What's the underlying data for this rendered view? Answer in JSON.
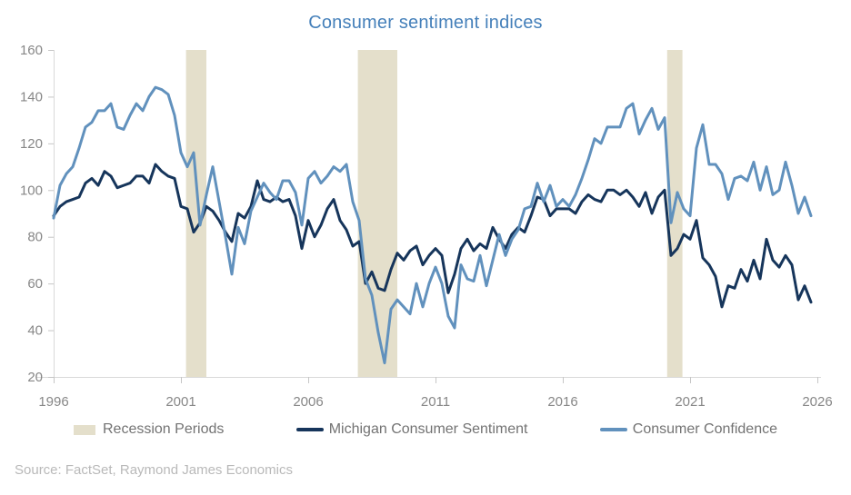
{
  "title": "Consumer sentiment indices",
  "source": "Source: FactSet, Raymond James Economics",
  "colors": {
    "title": "#4580ba",
    "michigan": "#16355b",
    "confidence": "#6191bd",
    "recession": "#e4dfcb",
    "axis_text": "#878787",
    "axis_line": "#d9d9d9",
    "tick_mark": "#c6c6c6",
    "legend_text": "#737373",
    "source_text": "#b9b9b9"
  },
  "legend": [
    {
      "label": "Recession Periods",
      "swatch": "band-swatch-icon"
    },
    {
      "label": "Michigan Consumer Sentiment",
      "swatch": "navy-line-swatch-icon"
    },
    {
      "label": "Consumer Confidence",
      "swatch": "blue-line-swatch-icon"
    }
  ],
  "chart_data": {
    "type": "line",
    "title": "Consumer sentiment indices",
    "xlabel": "",
    "ylabel": "",
    "x_range": [
      1996,
      2026
    ],
    "y_range": [
      20,
      160
    ],
    "x_ticks": [
      1996,
      2001,
      2006,
      2011,
      2016,
      2021,
      2026
    ],
    "y_ticks": [
      20,
      40,
      60,
      80,
      100,
      120,
      140,
      160
    ],
    "grid": false,
    "legend_position": "bottom",
    "x_start": 1996.0,
    "x_step": 0.25,
    "recession_periods": [
      [
        2001.2,
        2002.0
      ],
      [
        2007.95,
        2009.5
      ],
      [
        2020.1,
        2020.7
      ]
    ],
    "series": [
      {
        "name": "Michigan Consumer Sentiment",
        "color": "#16355b",
        "values": [
          89,
          93,
          95,
          96,
          97,
          103,
          105,
          102,
          108,
          106,
          101,
          102,
          103,
          106,
          106,
          103,
          111,
          108,
          106,
          105,
          93,
          92,
          82,
          86,
          93,
          91,
          87,
          82,
          78,
          90,
          88,
          93,
          104,
          96,
          95,
          97,
          95,
          96,
          89,
          75,
          87,
          80,
          85,
          92,
          96,
          87,
          83,
          76,
          78,
          60,
          65,
          58,
          57,
          66,
          73,
          70,
          74,
          76,
          68,
          72,
          75,
          72,
          56,
          64,
          75,
          79,
          74,
          77,
          75,
          84,
          79,
          75,
          81,
          84,
          82,
          89,
          97,
          96,
          89,
          92,
          92,
          92,
          90,
          95,
          98,
          96,
          95,
          100,
          100,
          98,
          100,
          97,
          93,
          99,
          90,
          97,
          100,
          72,
          75,
          81,
          79,
          87,
          71,
          68,
          63,
          50,
          59,
          58,
          66,
          61,
          70,
          62,
          79,
          70,
          67,
          72,
          68,
          53,
          59,
          52
        ]
      },
      {
        "name": "Consumer Confidence",
        "color": "#6191bd",
        "values": [
          88,
          102,
          107,
          110,
          118,
          127,
          129,
          134,
          134,
          137,
          127,
          126,
          132,
          137,
          134,
          140,
          144,
          143,
          141,
          132,
          116,
          110,
          116,
          85,
          98,
          110,
          95,
          80,
          64,
          84,
          77,
          91,
          97,
          103,
          99,
          96,
          104,
          104,
          99,
          85,
          105,
          108,
          103,
          106,
          110,
          108,
          111,
          95,
          87,
          62,
          55,
          39,
          26,
          49,
          53,
          50,
          47,
          60,
          50,
          60,
          67,
          60,
          46,
          41,
          68,
          62,
          61,
          72,
          59,
          70,
          81,
          72,
          79,
          83,
          92,
          93,
          103,
          95,
          102,
          93,
          96,
          93,
          98,
          105,
          113,
          122,
          120,
          127,
          127,
          127,
          135,
          137,
          124,
          130,
          135,
          126,
          131,
          86,
          99,
          92,
          89,
          118,
          128,
          111,
          111,
          107,
          96,
          105,
          106,
          104,
          112,
          100,
          110,
          98,
          100,
          112,
          102,
          90,
          97,
          89
        ]
      }
    ]
  }
}
